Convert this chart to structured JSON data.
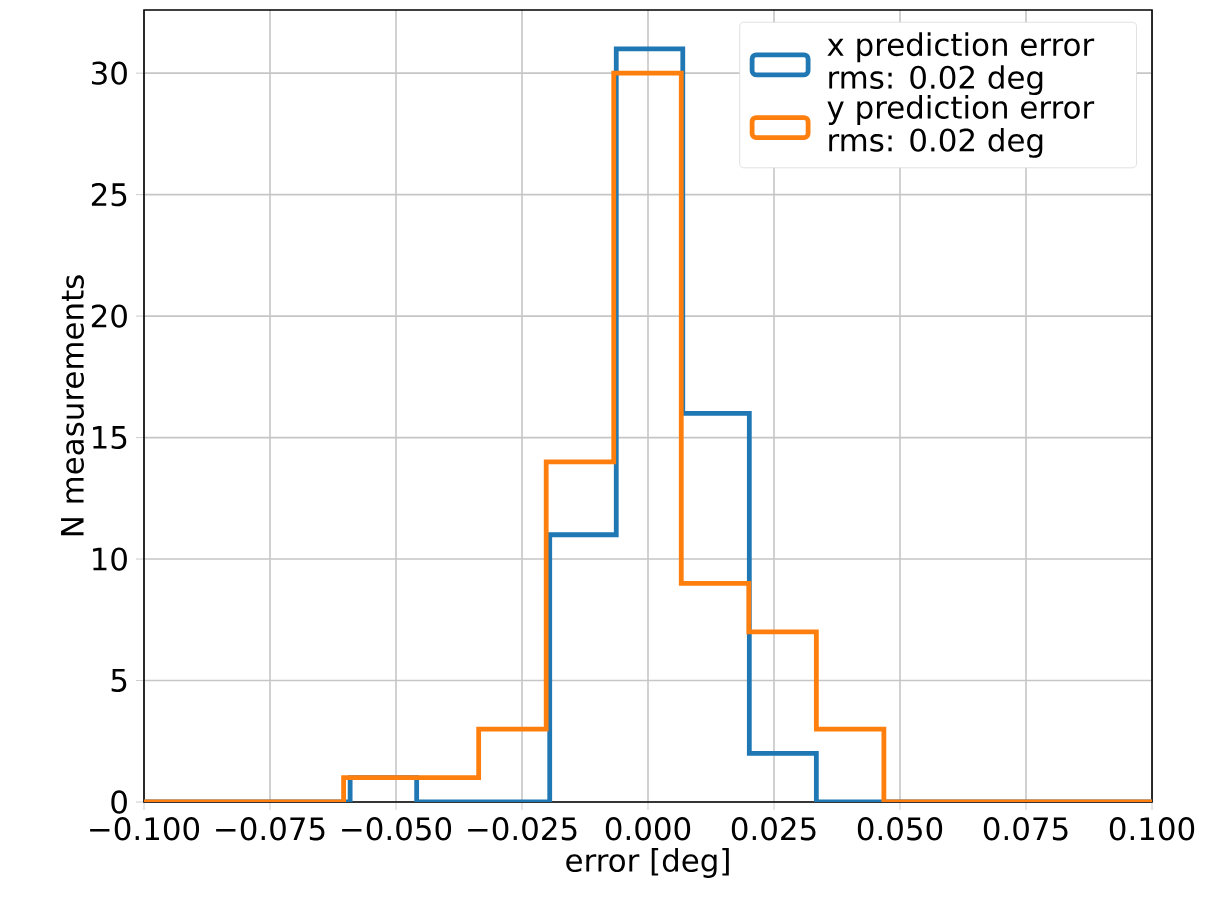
{
  "chart_data": {
    "type": "step",
    "xlabel": "error [deg]",
    "ylabel": "N measurements",
    "xlim": [
      -0.1,
      0.1
    ],
    "xticks": [
      {
        "value": -0.1,
        "label": "−0.100"
      },
      {
        "value": -0.075,
        "label": "−0.075"
      },
      {
        "value": -0.05,
        "label": "−0.050"
      },
      {
        "value": -0.025,
        "label": "−0.025"
      },
      {
        "value": 0,
        "label": "0.000"
      },
      {
        "value": 0.025,
        "label": "0.025"
      },
      {
        "value": 0.05,
        "label": "0.050"
      },
      {
        "value": 0.075,
        "label": "0.075"
      },
      {
        "value": 0.1,
        "label": "0.100"
      }
    ],
    "ylim": [
      0,
      32.6
    ],
    "yticks": [
      0,
      5,
      10,
      15,
      20,
      25,
      30
    ],
    "grid": true,
    "legend": "top right",
    "series": [
      {
        "name": "x prediction error rms: 0.02 deg",
        "color": "#1f77b4",
        "x": [
          -0.1,
          -0.0591,
          -0.0459,
          -0.0327,
          -0.0195,
          -0.0063,
          0.0069,
          0.0201,
          0.0334,
          0.1
        ],
        "values": [
          0,
          1,
          0,
          0,
          11,
          31,
          16,
          2,
          0,
          0
        ]
      },
      {
        "name": "y prediction error rms: 0.02 deg",
        "color": "#ff7f0e",
        "x": [
          -0.1,
          -0.0604,
          -0.047,
          -0.0336,
          -0.0202,
          -0.0068,
          0.0066,
          0.02,
          0.0334,
          0.0468,
          0.1
        ],
        "values": [
          0,
          1,
          1,
          3,
          14,
          30,
          9,
          7,
          3,
          0,
          0
        ]
      }
    ]
  }
}
